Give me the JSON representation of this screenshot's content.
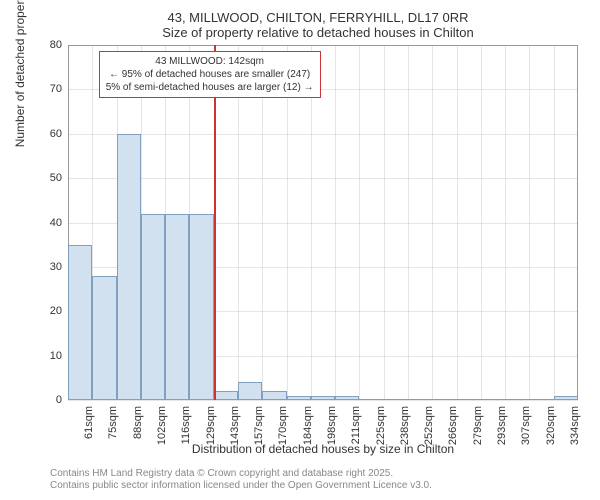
{
  "chart": {
    "type": "histogram",
    "title_main": "43, MILLWOOD, CHILTON, FERRYHILL, DL17 0RR",
    "title_sub": "Size of property relative to detached houses in Chilton",
    "ylabel": "Number of detached properties",
    "xlabel": "Distribution of detached houses by size in Chilton",
    "ylim": [
      0,
      80
    ],
    "ytick_step": 10,
    "yticks": [
      0,
      10,
      20,
      30,
      40,
      50,
      60,
      70,
      80
    ],
    "xticks": [
      "61sqm",
      "75sqm",
      "88sqm",
      "102sqm",
      "116sqm",
      "129sqm",
      "143sqm",
      "157sqm",
      "170sqm",
      "184sqm",
      "198sqm",
      "211sqm",
      "225sqm",
      "238sqm",
      "252sqm",
      "266sqm",
      "279sqm",
      "293sqm",
      "307sqm",
      "320sqm",
      "334sqm"
    ],
    "values": [
      35,
      28,
      60,
      42,
      42,
      42,
      2,
      4,
      2,
      1,
      1,
      1,
      0,
      0,
      0,
      0,
      0,
      0,
      0,
      0,
      1
    ],
    "bar_color": "#d2e1f0",
    "bar_border_color": "#819fbe",
    "background_color": "#ffffff",
    "grid_color": "#999999",
    "marker_color": "#cc3333",
    "marker_position_index": 6,
    "annotation": {
      "line1": "43 MILLWOOD: 142sqm",
      "line2": "← 95% of detached houses are smaller (247)",
      "line3": "5% of semi-detached houses are larger (12) →"
    },
    "title_fontsize": 13,
    "label_fontsize": 12,
    "tick_fontsize": 11,
    "annotation_fontsize": 10
  },
  "footer": {
    "line1": "Contains HM Land Registry data © Crown copyright and database right 2025.",
    "line2": "Contains public sector information licensed under the Open Government Licence v3.0."
  }
}
